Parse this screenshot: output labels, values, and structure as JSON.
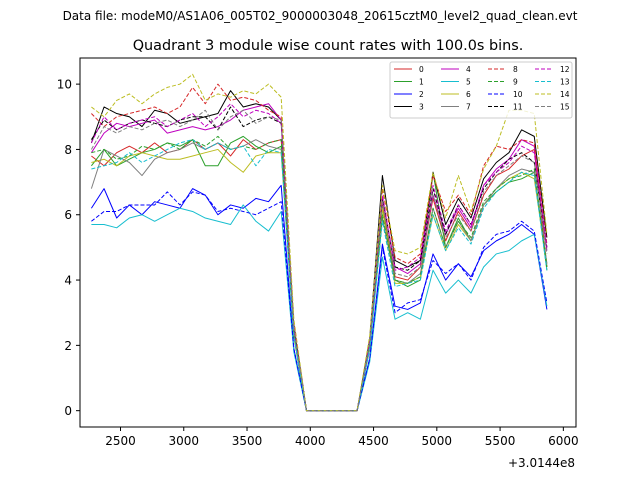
{
  "figure": {
    "suptitle": "Data file: modeM0/AS1A06_005T02_9000003048_20615cztM0_level2_quad_clean.evt",
    "title": "Quadrant 3 module wise count rates with 100.0s bins."
  },
  "chart_data": {
    "type": "line",
    "title": "Quadrant 3 module wise count rates with 100.0s bins.",
    "xlabel": "",
    "ylabel": "",
    "x_offset_label": "+3.0144e8",
    "xlim": [
      2180,
      6100
    ],
    "ylim": [
      -0.5,
      10.8
    ],
    "xticks": [
      2500,
      3000,
      3500,
      4000,
      4500,
      5000,
      5500,
      6000
    ],
    "yticks": [
      0,
      2,
      4,
      6,
      8,
      10
    ],
    "grid": false,
    "legend_position": "top-right",
    "x": [
      2270,
      2370,
      2470,
      2570,
      2670,
      2770,
      2870,
      2970,
      3070,
      3170,
      3270,
      3370,
      3470,
      3570,
      3670,
      3770,
      3870,
      3970,
      4070,
      4170,
      4270,
      4370,
      4470,
      4570,
      4670,
      4770,
      4870,
      4970,
      5070,
      5170,
      5270,
      5370,
      5470,
      5570,
      5670,
      5770,
      5870
    ],
    "series": [
      {
        "name": "0",
        "color": "#d62728",
        "dash": false,
        "values": [
          7.8,
          7.5,
          7.9,
          8.1,
          7.9,
          8.2,
          7.9,
          8.0,
          8.3,
          8.0,
          8.2,
          7.8,
          8.3,
          8.0,
          8.2,
          8.3,
          2.4,
          0,
          0,
          0,
          0,
          0,
          2.0,
          6.3,
          4.1,
          4.0,
          4.4,
          6.5,
          5.2,
          6.1,
          5.5,
          6.6,
          7.2,
          7.4,
          7.8,
          8.0,
          4.4
        ]
      },
      {
        "name": "1",
        "color": "#2ca02c",
        "dash": false,
        "values": [
          7.5,
          8.0,
          7.5,
          7.7,
          7.9,
          8.0,
          8.2,
          8.1,
          8.3,
          7.5,
          7.5,
          8.2,
          8.4,
          8.1,
          7.9,
          8.1,
          2.3,
          0,
          0,
          0,
          0,
          0,
          1.9,
          6.2,
          4.0,
          3.8,
          4.0,
          7.3,
          5.0,
          5.9,
          5.2,
          6.3,
          6.7,
          7.0,
          7.1,
          7.3,
          4.3
        ]
      },
      {
        "name": "2",
        "color": "#0000ff",
        "dash": false,
        "values": [
          6.2,
          6.8,
          5.9,
          6.3,
          6.0,
          6.4,
          6.3,
          6.2,
          6.8,
          6.6,
          6.0,
          6.3,
          6.2,
          6.5,
          6.4,
          6.9,
          1.9,
          0,
          0,
          0,
          0,
          0,
          1.6,
          5.1,
          3.2,
          3.1,
          3.3,
          4.8,
          4.0,
          4.5,
          4.1,
          4.9,
          5.2,
          5.4,
          5.7,
          5.4,
          3.1
        ]
      },
      {
        "name": "3",
        "color": "#000000",
        "dash": false,
        "values": [
          8.2,
          9.3,
          9.1,
          9.0,
          8.7,
          9.2,
          9.1,
          8.8,
          8.9,
          9.0,
          9.1,
          9.8,
          9.3,
          9.4,
          9.3,
          8.9,
          2.6,
          0,
          0,
          0,
          0,
          0,
          2.2,
          7.2,
          4.6,
          4.4,
          4.6,
          7.3,
          5.7,
          6.5,
          5.9,
          7.1,
          7.6,
          7.9,
          8.6,
          8.4,
          5.3
        ]
      },
      {
        "name": "4",
        "color": "#bf00bf",
        "dash": false,
        "values": [
          7.9,
          8.5,
          8.8,
          8.7,
          8.8,
          8.9,
          8.5,
          8.6,
          8.7,
          8.6,
          8.7,
          8.9,
          9.2,
          9.3,
          9.4,
          8.9,
          2.6,
          0,
          0,
          0,
          0,
          0,
          2.1,
          6.5,
          4.4,
          4.2,
          4.5,
          6.6,
          5.4,
          6.2,
          5.6,
          6.9,
          7.4,
          7.7,
          8.3,
          8.1,
          4.9
        ]
      },
      {
        "name": "5",
        "color": "#17becf",
        "dash": false,
        "values": [
          5.7,
          5.7,
          5.6,
          5.9,
          6.0,
          5.8,
          6.0,
          6.2,
          6.1,
          5.9,
          5.8,
          5.7,
          6.3,
          5.8,
          5.5,
          6.1,
          1.8,
          0,
          0,
          0,
          0,
          0,
          1.5,
          4.7,
          2.8,
          3.0,
          2.8,
          4.3,
          3.6,
          4.0,
          3.6,
          4.4,
          4.8,
          4.9,
          5.2,
          5.4,
          3.2
        ]
      },
      {
        "name": "6",
        "color": "#bcbd22",
        "dash": false,
        "values": [
          7.6,
          7.7,
          7.5,
          7.8,
          7.9,
          7.8,
          7.7,
          7.7,
          7.8,
          7.9,
          8.0,
          7.6,
          7.3,
          7.8,
          7.9,
          7.9,
          2.3,
          0,
          0,
          0,
          0,
          0,
          2.0,
          6.2,
          3.9,
          3.9,
          4.1,
          6.0,
          4.9,
          5.7,
          5.2,
          6.3,
          6.8,
          7.1,
          7.3,
          7.1,
          4.5
        ]
      },
      {
        "name": "7",
        "color": "#7f7f7f",
        "dash": false,
        "values": [
          6.8,
          8.0,
          7.8,
          7.6,
          7.2,
          7.7,
          7.9,
          8.0,
          8.2,
          8.0,
          8.2,
          8.0,
          8.1,
          8.3,
          8.1,
          8.0,
          2.3,
          0,
          0,
          0,
          0,
          0,
          1.9,
          5.9,
          4.0,
          3.9,
          4.2,
          6.2,
          5.0,
          5.8,
          5.2,
          6.3,
          6.8,
          7.2,
          7.4,
          7.3,
          4.5
        ]
      },
      {
        "name": "8",
        "color": "#d62728",
        "dash": true,
        "values": [
          9.1,
          8.7,
          9.0,
          9.1,
          9.2,
          9.3,
          9.1,
          9.3,
          9.9,
          9.4,
          10.0,
          9.5,
          9.6,
          9.5,
          9.2,
          9.0,
          2.7,
          0,
          0,
          0,
          0,
          0,
          2.2,
          6.8,
          4.7,
          4.5,
          4.8,
          7.2,
          6.1,
          6.6,
          6.0,
          7.5,
          8.1,
          8.0,
          8.3,
          8.2,
          5.1
        ]
      },
      {
        "name": "9",
        "color": "#2ca02c",
        "dash": true,
        "values": [
          7.9,
          8.0,
          7.7,
          7.8,
          8.1,
          8.0,
          8.2,
          8.0,
          8.3,
          8.1,
          8.4,
          8.0,
          8.1,
          8.0,
          8.2,
          8.3,
          2.3,
          0,
          0,
          0,
          0,
          0,
          2.0,
          6.0,
          4.0,
          3.9,
          4.1,
          6.2,
          5.0,
          5.8,
          5.3,
          6.4,
          6.8,
          7.1,
          7.2,
          7.4,
          4.4
        ]
      },
      {
        "name": "10",
        "color": "#0000ff",
        "dash": true,
        "values": [
          5.8,
          6.1,
          6.1,
          6.3,
          6.3,
          6.3,
          6.7,
          6.3,
          6.7,
          6.6,
          6.1,
          6.2,
          6.1,
          6.0,
          6.2,
          6.4,
          1.9,
          0,
          0,
          0,
          0,
          0,
          1.6,
          5.0,
          3.0,
          3.3,
          3.4,
          4.6,
          4.2,
          4.5,
          4.0,
          5.0,
          5.4,
          5.5,
          5.8,
          5.5,
          3.3
        ]
      },
      {
        "name": "11",
        "color": "#000000",
        "dash": true,
        "values": [
          8.3,
          8.9,
          8.6,
          8.8,
          8.9,
          8.8,
          8.7,
          8.9,
          9.0,
          9.0,
          8.6,
          9.3,
          8.7,
          8.9,
          9.0,
          8.8,
          2.6,
          0,
          0,
          0,
          0,
          0,
          2.1,
          6.5,
          4.4,
          4.3,
          4.6,
          6.8,
          5.4,
          6.3,
          5.7,
          6.8,
          7.3,
          7.7,
          7.9,
          7.6,
          5.0
        ]
      },
      {
        "name": "12",
        "color": "#bf00bf",
        "dash": true,
        "values": [
          8.2,
          9.0,
          8.6,
          8.8,
          8.9,
          9.0,
          8.7,
          8.9,
          9.1,
          8.7,
          9.0,
          9.4,
          9.0,
          9.2,
          9.1,
          8.8,
          2.6,
          0,
          0,
          0,
          0,
          0,
          2.1,
          6.6,
          4.3,
          4.4,
          4.7,
          6.9,
          5.5,
          6.3,
          5.7,
          6.9,
          7.3,
          7.6,
          8.1,
          7.9,
          5.0
        ]
      },
      {
        "name": "13",
        "color": "#17becf",
        "dash": true,
        "values": [
          7.4,
          7.5,
          7.6,
          7.9,
          7.6,
          7.8,
          8.0,
          8.2,
          8.3,
          8.0,
          8.2,
          8.0,
          8.1,
          7.5,
          8.0,
          7.9,
          2.3,
          0,
          0,
          0,
          0,
          0,
          1.9,
          5.8,
          3.8,
          3.9,
          4.0,
          6.0,
          4.9,
          5.6,
          5.1,
          6.2,
          6.7,
          7.0,
          7.3,
          7.2,
          4.3
        ]
      },
      {
        "name": "14",
        "color": "#bcbd22",
        "dash": true,
        "values": [
          9.3,
          9.0,
          9.5,
          9.7,
          9.4,
          9.7,
          9.9,
          10.0,
          10.3,
          9.5,
          9.7,
          9.6,
          9.8,
          9.7,
          10.0,
          9.6,
          2.8,
          0,
          0,
          0,
          0,
          0,
          2.3,
          6.9,
          4.9,
          4.8,
          5.0,
          7.3,
          5.9,
          7.2,
          6.1,
          7.4,
          8.1,
          9.2,
          9.2,
          9.1,
          5.4
        ]
      },
      {
        "name": "15",
        "color": "#7f7f7f",
        "dash": true,
        "values": [
          8.0,
          8.7,
          8.5,
          8.7,
          8.6,
          8.8,
          8.9,
          8.7,
          8.9,
          9.2,
          8.6,
          9.0,
          9.2,
          8.8,
          9.0,
          8.9,
          2.5,
          0,
          0,
          0,
          0,
          0,
          2.1,
          6.4,
          4.2,
          4.1,
          4.4,
          6.6,
          5.3,
          6.0,
          5.5,
          6.7,
          7.2,
          7.5,
          7.8,
          7.6,
          4.8
        ]
      }
    ]
  }
}
